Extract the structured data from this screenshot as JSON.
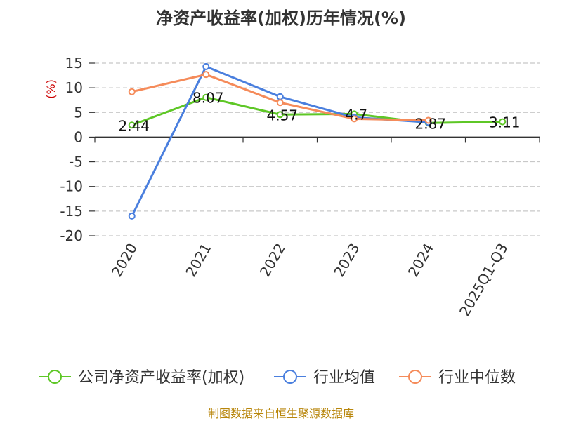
{
  "chart_data": {
    "type": "line",
    "title": "净资产收益率(加权)历年情况(%)",
    "ylabel": "(%)",
    "xlabel": "",
    "categories": [
      "2020",
      "2021",
      "2022",
      "2023",
      "2024",
      "2025Q1-Q3"
    ],
    "ylim": [
      -20,
      15
    ],
    "yticks": [
      15,
      10,
      5,
      0,
      -5,
      -10,
      -15,
      -20
    ],
    "grid": true,
    "legend_position": "bottom",
    "series": [
      {
        "name": "公司净资产收益率(加权)",
        "color": "#5ec726",
        "values": [
          2.44,
          8.07,
          4.57,
          4.7,
          2.87,
          3.11
        ],
        "labels": [
          "2.44",
          "8.07",
          "4.57",
          "4.7",
          "2.87",
          "3.11"
        ],
        "show_labels": true
      },
      {
        "name": "行业均值",
        "color": "#4a7fde",
        "values": [
          -16.0,
          14.3,
          8.2,
          4.0,
          3.0,
          null
        ],
        "show_labels": false
      },
      {
        "name": "行业中位数",
        "color": "#f58b5a",
        "values": [
          9.2,
          12.7,
          7.0,
          3.7,
          3.4,
          null
        ],
        "show_labels": false
      }
    ]
  },
  "source": "制图数据来自恒生聚源数据库"
}
